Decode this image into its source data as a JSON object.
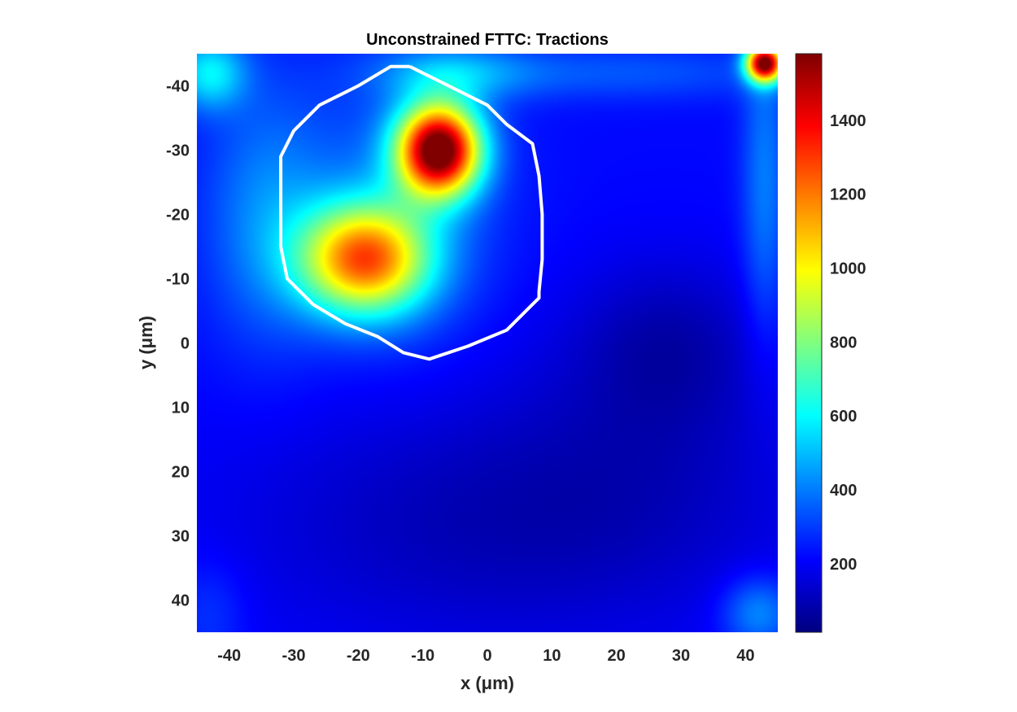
{
  "chart_data": {
    "type": "heatmap",
    "title": "Unconstrained FTTC: Tractions",
    "xlabel": "x (μm)",
    "ylabel": "y (μm)",
    "xlim": [
      -45,
      45
    ],
    "ylim": [
      -45,
      45
    ],
    "y_reversed": true,
    "xticks": [
      -40,
      -30,
      -20,
      -10,
      0,
      10,
      20,
      30,
      40
    ],
    "yticks": [
      -40,
      -30,
      -20,
      -10,
      0,
      10,
      20,
      30,
      40
    ],
    "colormap": "jet",
    "colorbar": {
      "limits": [
        15,
        1580
      ],
      "ticks": [
        200,
        400,
        600,
        800,
        1000,
        1200,
        1400
      ]
    },
    "base_value": 220,
    "hotspots": [
      {
        "x": -7.5,
        "y": -30,
        "value": 1400,
        "sx": 4.5,
        "sy": 5
      },
      {
        "x": -19,
        "y": -13,
        "value": 960,
        "sx": 7,
        "sy": 6
      },
      {
        "x": -34,
        "y": -20,
        "value": 200,
        "sx": 7,
        "sy": 14
      },
      {
        "x": -13,
        "y": -22,
        "value": 150,
        "sx": 10,
        "sy": 15
      },
      {
        "x": -43,
        "y": -42,
        "value": 350,
        "sx": 4,
        "sy": 4
      },
      {
        "x": -5,
        "y": -42,
        "value": 200,
        "sx": 8,
        "sy": 3
      },
      {
        "x": 43,
        "y": -43.5,
        "value": 1300,
        "sx": 2,
        "sy": 2
      },
      {
        "x": 43,
        "y": -25,
        "value": 180,
        "sx": 2.5,
        "sy": 18
      },
      {
        "x": 20,
        "y": -42,
        "value": 120,
        "sx": 20,
        "sy": 3
      },
      {
        "x": 42,
        "y": 42,
        "value": 220,
        "sx": 4,
        "sy": 4
      },
      {
        "x": -43,
        "y": 42,
        "value": 80,
        "sx": 4,
        "sy": 6
      }
    ],
    "cold_spots": [
      {
        "x": 0,
        "y": 28,
        "value": -120,
        "sx": 28,
        "sy": 14
      },
      {
        "x": 28,
        "y": 0,
        "value": -110,
        "sx": 10,
        "sy": 9
      },
      {
        "x": 25,
        "y": 15,
        "value": -60,
        "sx": 18,
        "sy": 15
      }
    ],
    "cell_boundary": {
      "points": [
        [
          -12,
          -43
        ],
        [
          -6,
          -40
        ],
        [
          0,
          -37
        ],
        [
          3,
          -34
        ],
        [
          7,
          -31
        ],
        [
          8,
          -26
        ],
        [
          8.5,
          -20
        ],
        [
          8.5,
          -13
        ],
        [
          8,
          -8
        ],
        [
          8,
          -7
        ],
        [
          7,
          -6
        ],
        [
          3,
          -2
        ],
        [
          -3,
          0.5
        ],
        [
          -9,
          2.5
        ],
        [
          -13,
          1.5
        ],
        [
          -17,
          -1
        ],
        [
          -22,
          -3
        ],
        [
          -27,
          -6
        ],
        [
          -31,
          -10
        ],
        [
          -32,
          -15
        ],
        [
          -32,
          -20
        ],
        [
          -32,
          -24
        ],
        [
          -32,
          -29
        ],
        [
          -30,
          -33
        ],
        [
          -26,
          -37
        ],
        [
          -20,
          -40
        ],
        [
          -15,
          -43
        ],
        [
          -12,
          -43
        ]
      ]
    }
  }
}
